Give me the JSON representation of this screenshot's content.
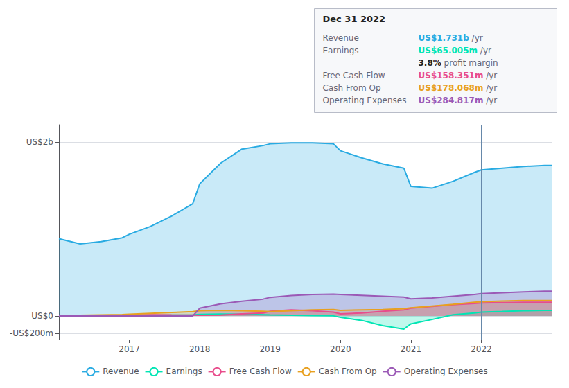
{
  "chart_data": {
    "type": "area",
    "x": [
      2016.0,
      2016.3,
      2016.6,
      2016.9,
      2017.0,
      2017.3,
      2017.6,
      2017.9,
      2018.0,
      2018.3,
      2018.6,
      2018.9,
      2019.0,
      2019.3,
      2019.6,
      2019.9,
      2020.0,
      2020.3,
      2020.6,
      2020.9,
      2021.0,
      2021.3,
      2021.6,
      2021.9,
      2022.0,
      2022.3,
      2022.6,
      2022.9,
      2023.0
    ],
    "series": [
      {
        "name": "Revenue",
        "color": "#29abe2",
        "values": [
          890,
          830,
          855,
          900,
          940,
          1030,
          1150,
          1290,
          1520,
          1760,
          1920,
          1960,
          1980,
          1990,
          1990,
          1980,
          1900,
          1820,
          1750,
          1700,
          1490,
          1470,
          1550,
          1650,
          1680,
          1700,
          1720,
          1731,
          1731
        ]
      },
      {
        "name": "Earnings",
        "color": "#00e5b4",
        "values": [
          8,
          6,
          5,
          4,
          5,
          8,
          10,
          12,
          18,
          22,
          20,
          15,
          12,
          8,
          5,
          2,
          -15,
          -50,
          -110,
          -150,
          -90,
          -40,
          15,
          35,
          45,
          52,
          60,
          65,
          65
        ]
      },
      {
        "name": "Free Cash Flow",
        "color": "#e84c8b",
        "values": [
          3,
          5,
          7,
          9,
          10,
          15,
          12,
          10,
          8,
          10,
          25,
          35,
          55,
          70,
          60,
          45,
          25,
          35,
          55,
          70,
          90,
          110,
          130,
          145,
          150,
          155,
          158,
          158,
          158
        ]
      },
      {
        "name": "Cash From Op",
        "color": "#e8a020",
        "values": [
          3,
          8,
          12,
          16,
          20,
          30,
          40,
          50,
          60,
          65,
          60,
          55,
          50,
          60,
          70,
          75,
          65,
          70,
          75,
          85,
          95,
          115,
          135,
          158,
          165,
          172,
          178,
          178,
          178
        ]
      },
      {
        "name": "Operating Expenses",
        "color": "#9b59b6",
        "values": [
          0,
          0,
          0,
          0,
          0,
          0,
          0,
          0,
          90,
          140,
          170,
          195,
          215,
          235,
          248,
          252,
          248,
          238,
          228,
          218,
          198,
          208,
          228,
          248,
          258,
          268,
          278,
          285,
          285
        ]
      }
    ],
    "xlim": [
      2016.0,
      2023.0
    ],
    "xticks": [
      2017,
      2018,
      2019,
      2020,
      2021,
      2022
    ],
    "ylim": [
      -270,
      2200
    ],
    "yticks": [
      {
        "value": -200,
        "label": "-US$200m"
      },
      {
        "value": 0,
        "label": "US$0"
      },
      {
        "value": 2000,
        "label": "US$2b"
      }
    ],
    "grid": true,
    "legend": "bottom",
    "vline": 2022.0,
    "info_box": {
      "title": "Dec 31 2022",
      "rows": [
        {
          "label": "Revenue",
          "value": "US$1.731b",
          "suffix": "/yr"
        },
        {
          "label": "Earnings",
          "value": "US$65.005m",
          "suffix": "/yr"
        },
        {
          "value": "3.8%",
          "suffix": "profit margin"
        },
        {
          "label": "Free Cash Flow",
          "value": "US$158.351m",
          "suffix": "/yr"
        },
        {
          "label": "Cash From Op",
          "value": "US$178.068m",
          "suffix": "/yr"
        },
        {
          "label": "Operating Expenses",
          "value": "US$284.817m",
          "suffix": "/yr"
        }
      ]
    }
  }
}
